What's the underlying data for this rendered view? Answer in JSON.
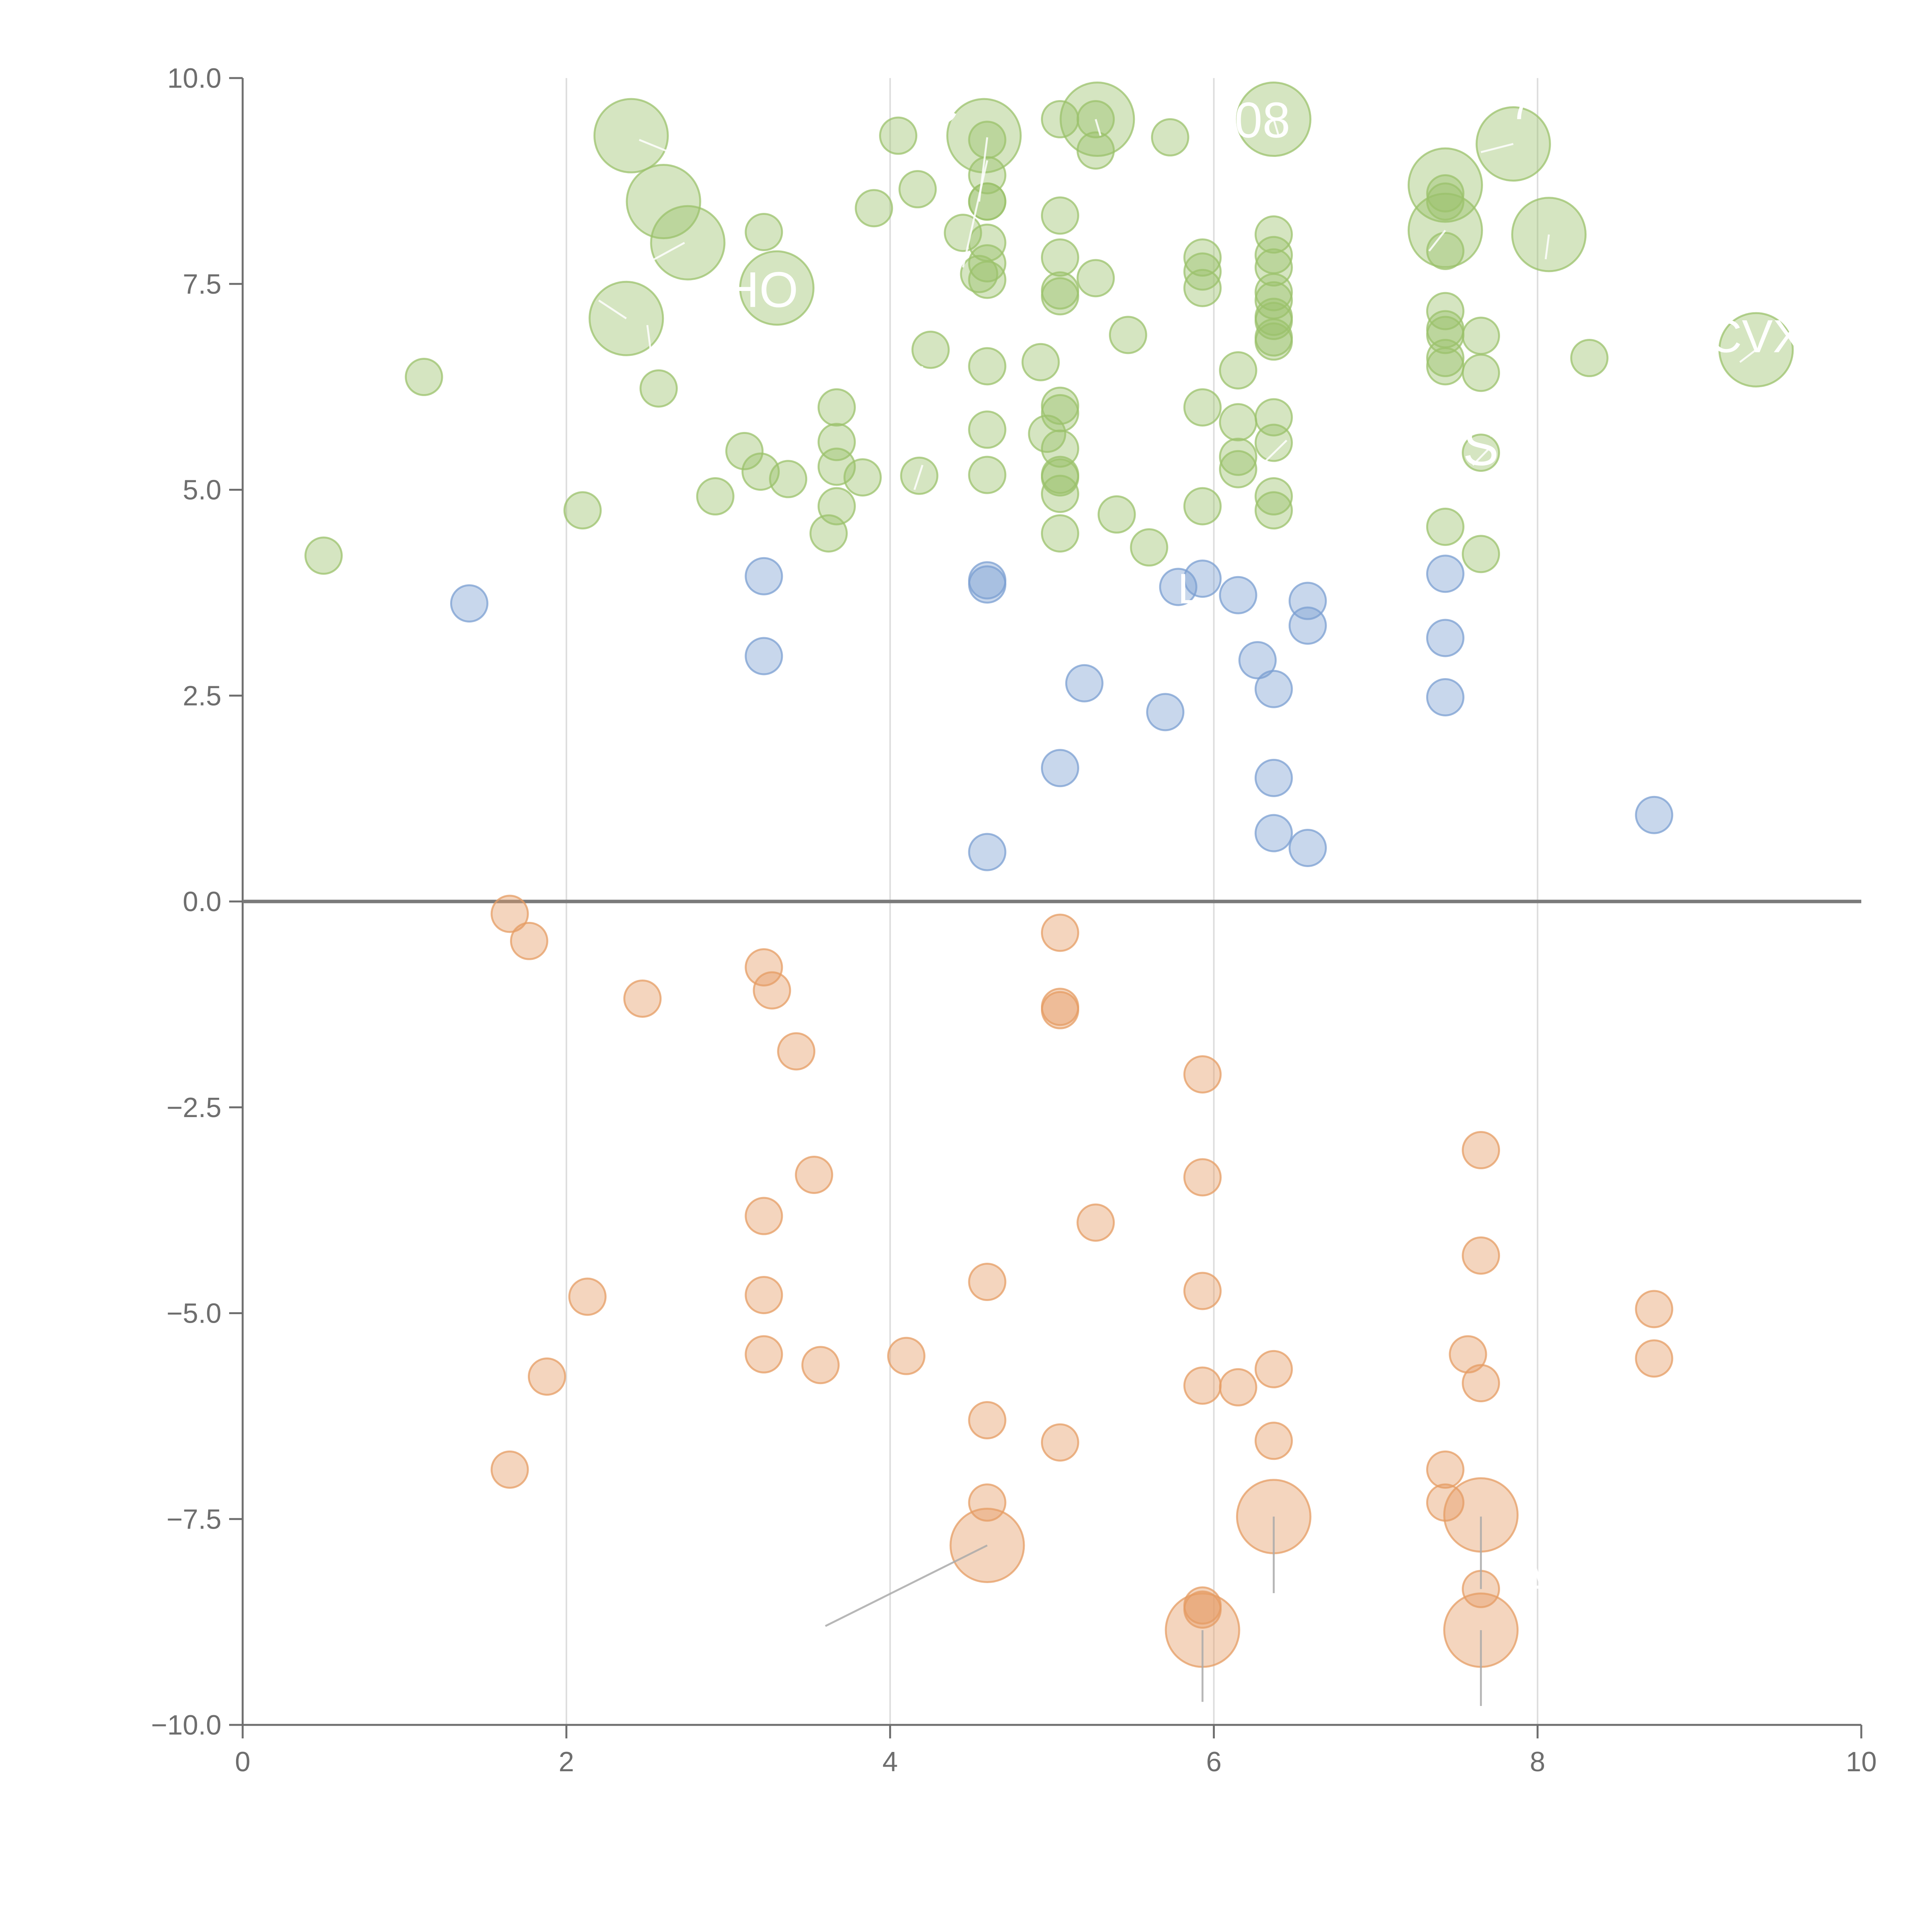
{
  "chart_data": {
    "type": "scatter",
    "title": "",
    "xlabel": "",
    "ylabel": "",
    "xlim": [
      0,
      10
    ],
    "ylim": [
      -10,
      10
    ],
    "grid": "vertical",
    "legend": "none",
    "x_ticks": [
      "0",
      "2",
      "4",
      "6",
      "8",
      "10"
    ],
    "y_ticks": [
      "10.0",
      "7.5",
      "5.0",
      "2.5",
      "0.0",
      "−2.5",
      "−5.0",
      "−7.5",
      "−10.0"
    ],
    "colors": {
      "green": "#9bc26b",
      "blue": "#7b9fd1",
      "orange": "#e59c63",
      "axis": "#6e6e6e",
      "grid": "#dddddd",
      "zero_line": "#7a7a7a",
      "label": "#ffffff",
      "leader": "#aaaaaa"
    },
    "series": [
      {
        "name": "green",
        "points": [
          [
            2.4,
            9.3,
            2
          ],
          [
            2.6,
            8.5,
            2
          ],
          [
            2.75,
            8.0,
            2
          ],
          [
            2.37,
            7.08,
            2
          ],
          [
            3.3,
            7.45,
            2
          ],
          [
            4.58,
            9.3,
            2
          ],
          [
            5.28,
            9.5,
            2
          ],
          [
            6.37,
            9.5,
            2
          ],
          [
            7.85,
            9.2,
            2
          ],
          [
            7.43,
            8.7,
            2
          ],
          [
            7.43,
            8.15,
            2
          ],
          [
            8.07,
            8.1,
            2
          ],
          [
            9.35,
            6.7,
            2
          ],
          [
            4.05,
            9.3,
            1
          ],
          [
            4.6,
            9.25,
            1
          ],
          [
            5.05,
            9.5,
            1
          ],
          [
            5.27,
            9.5,
            1
          ],
          [
            5.27,
            9.12,
            1
          ],
          [
            5.73,
            9.28,
            1
          ],
          [
            4.17,
            8.65,
            1
          ],
          [
            4.6,
            8.82,
            1
          ],
          [
            4.6,
            8.5,
            1
          ],
          [
            4.6,
            8.5,
            1
          ],
          [
            3.9,
            8.42,
            1
          ],
          [
            3.22,
            8.13,
            1
          ],
          [
            4.45,
            8.12,
            1
          ],
          [
            4.6,
            8.0,
            1
          ],
          [
            5.05,
            8.33,
            1
          ],
          [
            6.37,
            8.1,
            1
          ],
          [
            6.37,
            7.85,
            1
          ],
          [
            6.37,
            7.7,
            1
          ],
          [
            5.93,
            7.82,
            1
          ],
          [
            5.93,
            7.65,
            1
          ],
          [
            5.93,
            7.45,
            1
          ],
          [
            7.43,
            7.9,
            1
          ],
          [
            7.43,
            8.5,
            1
          ],
          [
            7.43,
            8.6,
            1
          ],
          [
            4.6,
            7.75,
            1
          ],
          [
            4.55,
            7.62,
            1
          ],
          [
            4.6,
            7.55,
            1
          ],
          [
            5.05,
            7.82,
            1
          ],
          [
            5.05,
            7.42,
            1
          ],
          [
            5.05,
            7.35,
            1
          ],
          [
            5.27,
            7.57,
            1
          ],
          [
            6.37,
            7.4,
            1
          ],
          [
            6.37,
            7.3,
            1
          ],
          [
            6.37,
            7.1,
            1
          ],
          [
            6.37,
            7.05,
            1
          ],
          [
            6.37,
            6.85,
            1
          ],
          [
            6.37,
            6.8,
            1
          ],
          [
            7.43,
            7.17,
            1
          ],
          [
            7.43,
            6.95,
            1
          ],
          [
            7.43,
            6.88,
            1
          ],
          [
            7.65,
            6.87,
            1
          ],
          [
            7.43,
            6.6,
            1
          ],
          [
            7.43,
            6.5,
            1
          ],
          [
            7.65,
            6.42,
            1
          ],
          [
            8.32,
            6.6,
            1
          ],
          [
            1.12,
            6.37,
            1
          ],
          [
            2.57,
            6.23,
            1
          ],
          [
            4.25,
            6.7,
            1
          ],
          [
            4.6,
            6.5,
            1
          ],
          [
            4.93,
            6.55,
            1
          ],
          [
            5.47,
            6.88,
            1
          ],
          [
            6.15,
            6.45,
            1
          ],
          [
            5.93,
            6.0,
            1
          ],
          [
            3.67,
            6.0,
            1
          ],
          [
            3.67,
            5.58,
            1
          ],
          [
            3.1,
            5.47,
            1
          ],
          [
            3.2,
            5.22,
            1
          ],
          [
            3.67,
            5.28,
            1
          ],
          [
            3.37,
            5.13,
            1
          ],
          [
            3.83,
            5.15,
            1
          ],
          [
            4.18,
            5.17,
            1
          ],
          [
            4.6,
            5.73,
            1
          ],
          [
            4.6,
            5.18,
            1
          ],
          [
            4.97,
            5.68,
            1
          ],
          [
            5.05,
            6.02,
            1
          ],
          [
            5.05,
            5.93,
            1
          ],
          [
            5.05,
            5.5,
            1
          ],
          [
            5.05,
            5.18,
            1
          ],
          [
            5.05,
            5.15,
            1
          ],
          [
            5.05,
            4.95,
            1
          ],
          [
            5.05,
            4.47,
            1
          ],
          [
            5.4,
            4.7,
            1
          ],
          [
            5.6,
            4.3,
            1
          ],
          [
            5.93,
            4.8,
            1
          ],
          [
            6.15,
            5.82,
            1
          ],
          [
            6.15,
            5.4,
            1
          ],
          [
            6.15,
            5.25,
            1
          ],
          [
            6.37,
            5.88,
            1
          ],
          [
            6.37,
            5.57,
            1
          ],
          [
            6.37,
            4.92,
            1
          ],
          [
            6.37,
            4.75,
            1
          ],
          [
            7.65,
            5.45,
            1
          ],
          [
            7.65,
            4.22,
            1
          ],
          [
            7.43,
            4.55,
            1
          ],
          [
            3.67,
            4.8,
            1
          ],
          [
            3.62,
            4.47,
            1
          ],
          [
            2.92,
            4.92,
            1
          ],
          [
            2.1,
            4.75,
            1
          ],
          [
            0.5,
            4.2,
            1
          ]
        ]
      },
      {
        "name": "blue",
        "points": [
          [
            1.4,
            3.62,
            1
          ],
          [
            3.22,
            3.95,
            1
          ],
          [
            3.22,
            2.98,
            1
          ],
          [
            4.6,
            3.9,
            1
          ],
          [
            4.6,
            3.85,
            1
          ],
          [
            5.78,
            3.82,
            1
          ],
          [
            5.93,
            3.92,
            1
          ],
          [
            6.15,
            3.72,
            1
          ],
          [
            6.58,
            3.65,
            1
          ],
          [
            6.58,
            3.35,
            1
          ],
          [
            6.27,
            2.93,
            1
          ],
          [
            6.37,
            2.58,
            1
          ],
          [
            5.2,
            2.65,
            1
          ],
          [
            5.7,
            2.3,
            1
          ],
          [
            7.43,
            3.98,
            1
          ],
          [
            7.43,
            3.2,
            1
          ],
          [
            7.43,
            2.48,
            1
          ],
          [
            5.05,
            1.62,
            1
          ],
          [
            6.37,
            1.5,
            1
          ],
          [
            6.37,
            0.83,
            1
          ],
          [
            6.58,
            0.65,
            1
          ],
          [
            4.6,
            0.6,
            1
          ],
          [
            8.72,
            1.05,
            1
          ]
        ]
      },
      {
        "name": "orange",
        "points": [
          [
            1.65,
            -0.15,
            1
          ],
          [
            1.77,
            -0.48,
            1
          ],
          [
            2.47,
            -1.18,
            1
          ],
          [
            3.22,
            -0.8,
            1
          ],
          [
            3.27,
            -1.08,
            1
          ],
          [
            3.42,
            -1.82,
            1
          ],
          [
            5.05,
            -0.38,
            1
          ],
          [
            5.05,
            -1.28,
            1
          ],
          [
            5.05,
            -1.32,
            1
          ],
          [
            5.93,
            -2.1,
            1
          ],
          [
            7.65,
            -3.02,
            1
          ],
          [
            3.53,
            -3.32,
            1
          ],
          [
            5.93,
            -3.35,
            1
          ],
          [
            3.22,
            -3.82,
            1
          ],
          [
            5.27,
            -3.9,
            1
          ],
          [
            7.65,
            -4.3,
            1
          ],
          [
            4.6,
            -4.62,
            1
          ],
          [
            3.22,
            -4.78,
            1
          ],
          [
            2.13,
            -4.8,
            1
          ],
          [
            5.93,
            -4.73,
            1
          ],
          [
            8.72,
            -4.95,
            1
          ],
          [
            8.72,
            -5.55,
            1
          ],
          [
            7.57,
            -5.5,
            1
          ],
          [
            7.65,
            -5.85,
            1
          ],
          [
            4.1,
            -5.52,
            1
          ],
          [
            3.22,
            -5.5,
            1
          ],
          [
            3.57,
            -5.63,
            1
          ],
          [
            1.88,
            -5.77,
            1
          ],
          [
            5.93,
            -5.88,
            1
          ],
          [
            6.15,
            -5.9,
            1
          ],
          [
            6.37,
            -5.68,
            1
          ],
          [
            4.6,
            -6.3,
            1
          ],
          [
            5.05,
            -6.57,
            1
          ],
          [
            6.37,
            -6.55,
            1
          ],
          [
            1.65,
            -6.9,
            1
          ],
          [
            7.43,
            -6.9,
            1
          ],
          [
            7.43,
            -7.3,
            1
          ],
          [
            4.6,
            -7.3,
            1
          ],
          [
            6.37,
            -7.47,
            2
          ],
          [
            7.65,
            -7.45,
            2
          ],
          [
            4.6,
            -7.82,
            2
          ],
          [
            5.93,
            -8.55,
            1
          ],
          [
            5.93,
            -8.6,
            1
          ],
          [
            7.65,
            -8.35,
            1
          ],
          [
            5.93,
            -8.85,
            2
          ],
          [
            7.65,
            -8.85,
            2
          ]
        ]
      }
    ],
    "annotations": [
      {
        "text": "C",
        "x": 4.3,
        "y": 9.45,
        "size": 140,
        "anchor": "middle"
      },
      {
        "text": "08",
        "x": 6.3,
        "y": 9.28,
        "size": 130,
        "anchor": "middle"
      },
      {
        "text": "7",
        "x": 7.9,
        "y": 9.5,
        "size": 110,
        "anchor": "middle"
      },
      {
        "text": "HO",
        "x": 3.2,
        "y": 7.22,
        "size": 130,
        "anchor": "middle"
      },
      {
        "text": "CVX",
        "x": 9.35,
        "y": 6.67,
        "size": 120,
        "anchor": "middle"
      },
      {
        "text": "S",
        "x": 7.65,
        "y": 5.3,
        "size": 140,
        "anchor": "middle"
      },
      {
        "text": "L",
        "x": 5.85,
        "y": 3.62,
        "size": 110,
        "anchor": "middle"
      },
      {
        "text": "A",
        "x": 7.98,
        "y": -8.45,
        "size": 110,
        "anchor": "middle"
      }
    ],
    "leader_lines": [
      [
        2.45,
        9.25,
        2.7,
        9.05
      ],
      [
        2.95,
        8.7,
        2.85,
        8.5
      ],
      [
        2.73,
        8.0,
        2.45,
        7.7
      ],
      [
        2.37,
        7.08,
        2.2,
        7.3
      ],
      [
        2.5,
        7.0,
        2.52,
        6.7
      ],
      [
        4.6,
        9.28,
        4.55,
        8.5
      ],
      [
        5.27,
        9.5,
        5.3,
        9.3
      ],
      [
        6.37,
        9.5,
        6.4,
        9.3
      ],
      [
        7.85,
        9.2,
        7.65,
        9.1
      ],
      [
        8.07,
        8.1,
        8.05,
        7.8
      ],
      [
        7.43,
        8.15,
        7.33,
        7.9
      ],
      [
        9.35,
        6.7,
        9.25,
        6.55
      ],
      [
        4.6,
        9.0,
        4.45,
        7.7
      ],
      [
        4.2,
        6.5,
        4.15,
        6.3
      ],
      [
        4.2,
        5.3,
        4.15,
        5.0
      ],
      [
        6.45,
        5.6,
        6.32,
        5.35
      ],
      [
        7.7,
        5.5,
        7.6,
        5.3
      ],
      [
        4.6,
        -7.82,
        3.6,
        -8.8
      ],
      [
        6.37,
        -7.47,
        6.37,
        -8.4
      ],
      [
        7.65,
        -7.47,
        7.65,
        -8.35
      ],
      [
        5.93,
        -8.85,
        5.93,
        -9.72
      ],
      [
        7.65,
        -8.85,
        7.65,
        -9.77
      ]
    ]
  }
}
